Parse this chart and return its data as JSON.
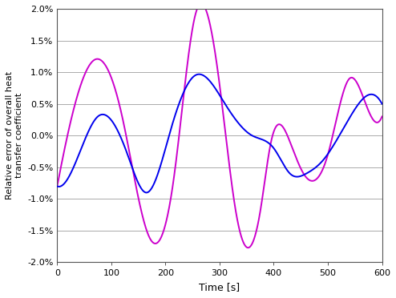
{
  "xlim": [
    0,
    600
  ],
  "ylim": [
    -0.02,
    0.02
  ],
  "xlabel": "Time [s]",
  "ylabel": "Relative error of overall heat\ntransfer coefficient",
  "xticks": [
    0,
    100,
    200,
    300,
    400,
    500,
    600
  ],
  "yticks": [
    -0.02,
    -0.015,
    -0.01,
    -0.005,
    0.0,
    0.005,
    0.01,
    0.015,
    0.02
  ],
  "ytick_labels": [
    "-2.0%",
    "-1.5%",
    "-1.0%",
    "-0.5%",
    "0.0%",
    "0.5%",
    "1.0%",
    "1.5%",
    "2.0%"
  ],
  "blue_color": "#0000EE",
  "pink_color": "#CC00CC",
  "line_width": 1.4,
  "background_color": "#FFFFFF",
  "grid_color": "#AAAAAA",
  "blue_t": [
    0,
    40,
    75,
    130,
    165,
    210,
    255,
    310,
    360,
    400,
    430,
    460,
    490,
    545,
    580,
    600
  ],
  "blue_y": [
    -0.008,
    -0.003,
    0.003,
    -0.003,
    -0.009,
    0.001,
    0.0095,
    0.005,
    0.0,
    -0.002,
    -0.006,
    -0.006,
    -0.004,
    0.0035,
    0.0065,
    0.005
  ],
  "pink_t": [
    0,
    30,
    70,
    120,
    170,
    215,
    255,
    300,
    330,
    375,
    395,
    430,
    455,
    500,
    540,
    580,
    600
  ],
  "pink_y": [
    -0.008,
    0.004,
    0.012,
    0.003,
    -0.016,
    -0.007,
    0.019,
    0.008,
    -0.012,
    -0.012,
    -0.001,
    -0.001,
    -0.006,
    -0.003,
    0.009,
    0.003,
    0.003
  ]
}
